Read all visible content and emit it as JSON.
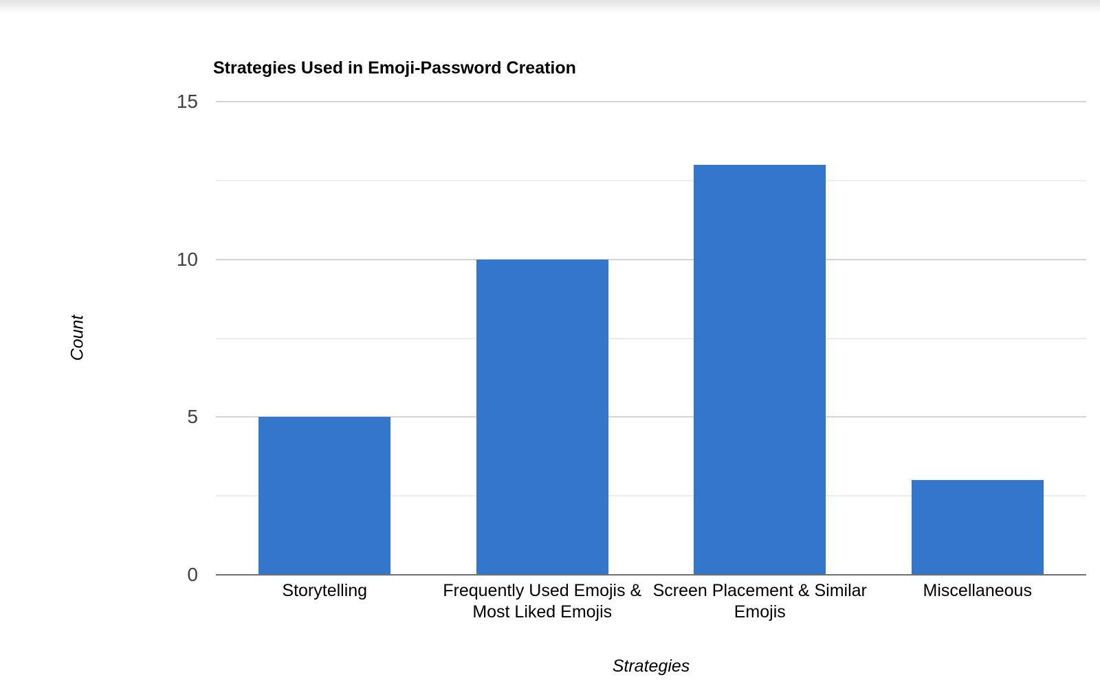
{
  "page": {
    "top_shadow_color": "#e2e2e2",
    "background_color": "#ffffff"
  },
  "chart_data": {
    "type": "bar",
    "title": "Strategies Used in Emoji-Password Creation",
    "xlabel": "Strategies",
    "ylabel": "Count",
    "categories": [
      "Storytelling",
      "Frequently Used Emojis &\nMost Liked Emojis",
      "Screen Placement & Similar\nEmojis",
      "Miscellaneous"
    ],
    "values": [
      5,
      10,
      13,
      3
    ],
    "ylim": [
      0,
      15
    ],
    "yticks": [
      0,
      5,
      10,
      15
    ],
    "minor_ticks": [
      2.5,
      7.5,
      12.5
    ],
    "grid": true,
    "legend": "none",
    "bar_color": "#3377cd",
    "major_gridline_color": "#d4d4d4",
    "minor_gridline_color": "#ededed",
    "axis_line_color": "#707070",
    "tick_label_color": "#404040",
    "text_color": "#000000"
  }
}
